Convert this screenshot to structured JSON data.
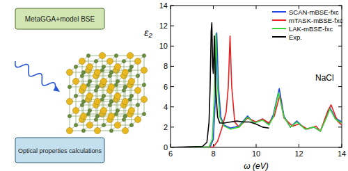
{
  "chart_data": {
    "type": "line",
    "x_label": "ω (eV)",
    "y_label": "ε₂",
    "annotation": "NaCl",
    "xlim": [
      6,
      14
    ],
    "xticks": [
      6,
      8,
      10,
      12,
      14
    ],
    "ylim": [
      0,
      14
    ],
    "yticks": [
      0,
      2,
      4,
      6,
      8,
      10,
      12,
      14
    ],
    "legend": "upper right",
    "series": [
      {
        "name": "SCAN-mBSE-fxc",
        "color": "#2244e8",
        "x": [
          6,
          7.85,
          8.0,
          8.1,
          8.16,
          8.24,
          8.35,
          8.5,
          8.8,
          9.2,
          9.6,
          9.9,
          10.3,
          10.6,
          10.8,
          11.08,
          11.3,
          11.6,
          11.9,
          12.3,
          12.7,
          13.0,
          13.3,
          13.45,
          13.7,
          14
        ],
        "values": [
          0,
          0.05,
          0.8,
          5,
          11.3,
          6,
          3,
          2.2,
          1.9,
          2.1,
          3.1,
          2.4,
          2.8,
          2.3,
          3.2,
          5.8,
          3.1,
          2.0,
          2.6,
          1.8,
          2.0,
          1.6,
          3.1,
          3.9,
          2.9,
          2.5
        ]
      },
      {
        "name": "mTASK-mBSE-fxc",
        "color": "#e82020",
        "x": [
          6,
          8.0,
          8.2,
          8.4,
          8.6,
          8.7,
          8.78,
          8.86,
          9.0,
          9.2,
          9.6,
          10.0,
          10.3,
          10.6,
          10.85,
          11.1,
          11.3,
          11.7,
          12.0,
          12.4,
          12.8,
          13.0,
          13.35,
          13.5,
          13.8,
          14
        ],
        "values": [
          0,
          0.05,
          0.6,
          1.9,
          3.5,
          6,
          11.0,
          6,
          2.5,
          2.0,
          2.9,
          2.5,
          2.8,
          2.4,
          3.1,
          5.1,
          2.9,
          2.1,
          2.3,
          1.8,
          2.1,
          1.6,
          3.6,
          4.2,
          2.6,
          2.2
        ]
      },
      {
        "name": "LAK-mBSE-fxc",
        "color": "#33d633",
        "x": [
          6,
          7.8,
          7.95,
          8.05,
          8.12,
          8.2,
          8.3,
          8.5,
          8.8,
          9.2,
          9.6,
          9.9,
          10.3,
          10.6,
          10.8,
          11.05,
          11.3,
          11.6,
          11.9,
          12.3,
          12.7,
          13.0,
          13.3,
          13.45,
          13.7,
          14
        ],
        "values": [
          0,
          0.05,
          0.8,
          5,
          11.2,
          6,
          3,
          2.1,
          1.8,
          2.0,
          3.0,
          2.4,
          2.7,
          2.2,
          3.0,
          5.4,
          3.0,
          2.0,
          2.5,
          1.8,
          2.0,
          1.6,
          3.0,
          3.8,
          2.8,
          2.4
        ]
      },
      {
        "name": "Exp.",
        "color": "#000000",
        "x": [
          6,
          7.5,
          7.7,
          7.8,
          7.85,
          7.9,
          7.93,
          7.97,
          8.0,
          8.05,
          8.1,
          8.2,
          8.3,
          8.5,
          8.8,
          9.1,
          9.4,
          9.7,
          10.0,
          10.3,
          10.6
        ],
        "values": [
          0,
          0.1,
          0.5,
          2.5,
          6,
          11.5,
          12.3,
          8,
          7.3,
          11.0,
          6,
          3,
          2.4,
          2.4,
          2.5,
          2.6,
          2.5,
          2.5,
          2.3,
          2.0,
          1.9
        ]
      }
    ]
  },
  "diagram": {
    "boxes": [
      "MetaGGA+model BSE",
      "Optical properties calculations"
    ]
  }
}
